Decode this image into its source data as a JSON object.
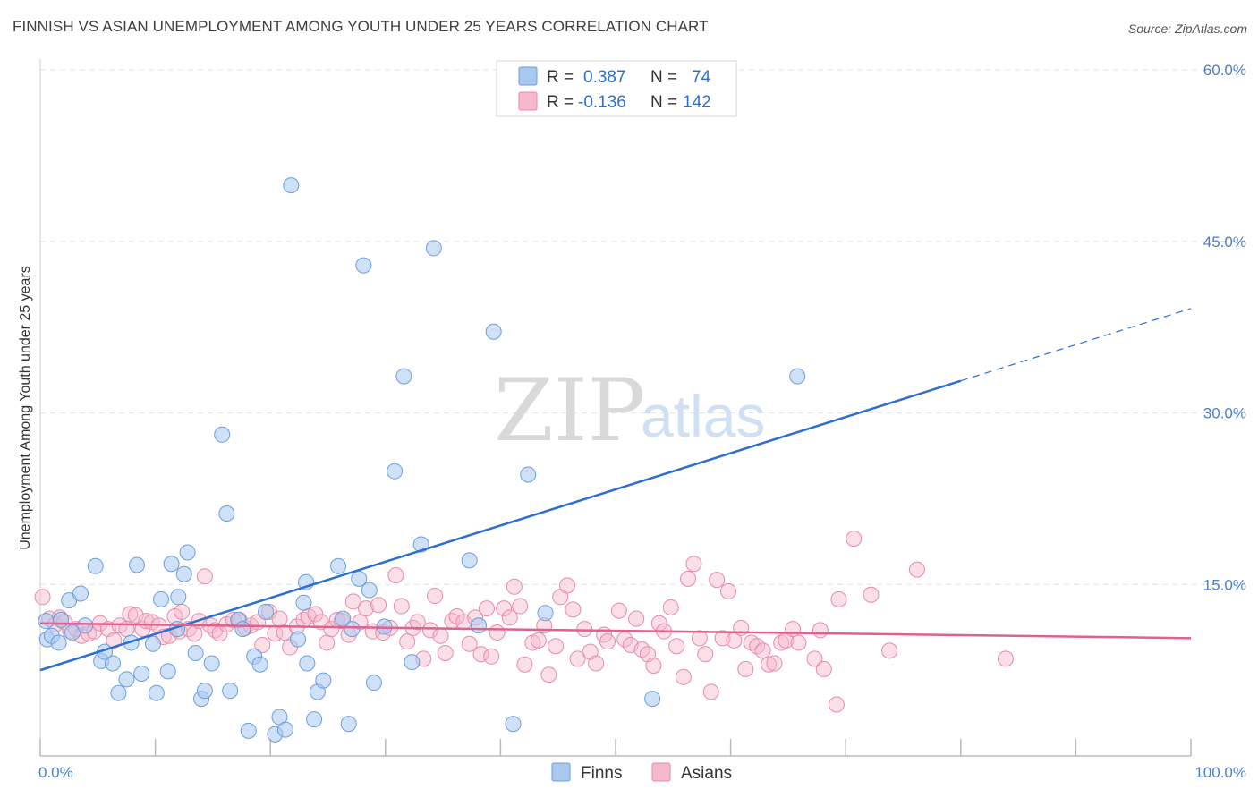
{
  "title": "FINNISH VS ASIAN UNEMPLOYMENT AMONG YOUTH UNDER 25 YEARS CORRELATION CHART",
  "source": "Source: ZipAtlas.com",
  "watermark": {
    "zip": "ZIP",
    "atlas": "atlas"
  },
  "colors": {
    "finns_fill": "#a8c8f0",
    "finns_stroke": "#6a9fdc",
    "finns_line": "#2c6fd1",
    "asians_fill": "#f6b8cb",
    "asians_stroke": "#e88aa8",
    "asians_line": "#e0608e",
    "axis_text": "#4a7fd0",
    "grid": "#e3e3e3"
  },
  "legend_top": {
    "rows": [
      {
        "r_label": "R =",
        "r_value": "0.387",
        "n_label": "N =",
        "n_value": "74"
      },
      {
        "r_label": "R =",
        "r_value": "-0.136",
        "n_label": "N =",
        "n_value": "142"
      }
    ]
  },
  "legend_bottom": {
    "finns": "Finns",
    "asians": "Asians"
  },
  "chart_data": {
    "type": "scatter",
    "title": "FINNISH VS ASIAN UNEMPLOYMENT AMONG YOUTH UNDER 25 YEARS CORRELATION CHART",
    "xlabel": "",
    "ylabel": "Unemployment Among Youth under 25 years",
    "xlim": [
      0,
      100
    ],
    "ylim": [
      0,
      60
    ],
    "x_tick_labels": [
      "0.0%",
      "100.0%"
    ],
    "y_ticks": [
      15,
      30,
      45,
      60
    ],
    "y_tick_labels": [
      "15.0%",
      "30.0%",
      "45.0%",
      "60.0%"
    ],
    "grid": true,
    "legend_position": "top-center",
    "series": [
      {
        "name": "Finns",
        "stats": {
          "R": 0.387,
          "N": 74
        },
        "trend": {
          "x0": 0,
          "y0": 7.5,
          "x1": 80,
          "y1": 32.8,
          "dashed_to_x": 100
        },
        "points": [
          [
            0.5,
            11.8
          ],
          [
            0.6,
            10.2
          ],
          [
            1.0,
            10.5
          ],
          [
            1.6,
            9.9
          ],
          [
            1.8,
            11.9
          ],
          [
            2.5,
            13.6
          ],
          [
            2.8,
            10.8
          ],
          [
            3.5,
            14.2
          ],
          [
            3.9,
            11.4
          ],
          [
            4.8,
            16.6
          ],
          [
            5.3,
            8.3
          ],
          [
            6.3,
            8.1
          ],
          [
            5.6,
            9.1
          ],
          [
            6.8,
            5.5
          ],
          [
            7.5,
            6.7
          ],
          [
            7.9,
            9.9
          ],
          [
            8.4,
            16.7
          ],
          [
            8.8,
            7.2
          ],
          [
            9.8,
            9.8
          ],
          [
            10.1,
            5.5
          ],
          [
            10.5,
            13.7
          ],
          [
            11.1,
            7.4
          ],
          [
            11.4,
            16.8
          ],
          [
            11.9,
            11.1
          ],
          [
            12.0,
            13.9
          ],
          [
            12.5,
            15.9
          ],
          [
            12.8,
            17.8
          ],
          [
            13.5,
            9.0
          ],
          [
            14.0,
            5.0
          ],
          [
            14.3,
            5.7
          ],
          [
            14.9,
            8.1
          ],
          [
            15.8,
            28.1
          ],
          [
            16.2,
            21.2
          ],
          [
            16.5,
            5.7
          ],
          [
            17.2,
            11.9
          ],
          [
            17.6,
            11.1
          ],
          [
            18.1,
            2.2
          ],
          [
            18.6,
            8.7
          ],
          [
            19.1,
            8.0
          ],
          [
            19.6,
            12.6
          ],
          [
            20.4,
            1.9
          ],
          [
            20.8,
            3.4
          ],
          [
            21.3,
            2.3
          ],
          [
            21.8,
            49.9
          ],
          [
            22.4,
            10.2
          ],
          [
            22.9,
            13.4
          ],
          [
            23.1,
            15.2
          ],
          [
            23.2,
            8.1
          ],
          [
            23.8,
            3.2
          ],
          [
            24.1,
            5.6
          ],
          [
            24.6,
            6.6
          ],
          [
            25.9,
            16.6
          ],
          [
            26.3,
            12.0
          ],
          [
            26.8,
            2.8
          ],
          [
            27.1,
            11.1
          ],
          [
            27.7,
            15.5
          ],
          [
            28.1,
            42.9
          ],
          [
            28.6,
            14.5
          ],
          [
            29.0,
            6.4
          ],
          [
            29.9,
            11.3
          ],
          [
            30.8,
            24.9
          ],
          [
            31.6,
            33.2
          ],
          [
            32.3,
            8.2
          ],
          [
            33.1,
            18.5
          ],
          [
            34.2,
            44.4
          ],
          [
            37.3,
            17.1
          ],
          [
            38.1,
            11.4
          ],
          [
            39.4,
            37.1
          ],
          [
            41.1,
            2.8
          ],
          [
            42.4,
            24.6
          ],
          [
            43.9,
            12.5
          ],
          [
            49.3,
            56.6
          ],
          [
            53.2,
            5.0
          ],
          [
            65.8,
            33.2
          ]
        ]
      },
      {
        "name": "Asians",
        "stats": {
          "R": -0.136,
          "N": 142
        },
        "trend": {
          "x0": 0,
          "y0": 11.6,
          "x1": 100,
          "y1": 10.3
        },
        "points": [
          [
            0.2,
            13.9
          ],
          [
            0.8,
            12.0
          ],
          [
            1.3,
            11.5
          ],
          [
            1.7,
            12.1
          ],
          [
            2.1,
            11.7
          ],
          [
            2.6,
            10.9
          ],
          [
            3.1,
            11.1
          ],
          [
            3.6,
            10.5
          ],
          [
            4.2,
            10.7
          ],
          [
            4.7,
            10.9
          ],
          [
            5.2,
            11.6
          ],
          [
            5.9,
            11.1
          ],
          [
            6.4,
            10.1
          ],
          [
            6.9,
            11.4
          ],
          [
            7.5,
            11.1
          ],
          [
            7.8,
            12.4
          ],
          [
            8.3,
            12.3
          ],
          [
            8.9,
            11.1
          ],
          [
            9.2,
            11.8
          ],
          [
            9.7,
            11.7
          ],
          [
            10.3,
            11.4
          ],
          [
            10.7,
            10.4
          ],
          [
            11.2,
            10.5
          ],
          [
            11.7,
            12.2
          ],
          [
            12.1,
            10.9
          ],
          [
            12.3,
            12.6
          ],
          [
            12.9,
            11.1
          ],
          [
            13.4,
            10.7
          ],
          [
            13.8,
            11.8
          ],
          [
            14.3,
            15.7
          ],
          [
            14.8,
            11.4
          ],
          [
            15.2,
            11.0
          ],
          [
            15.6,
            10.7
          ],
          [
            16.2,
            11.5
          ],
          [
            16.8,
            11.9
          ],
          [
            17.3,
            11.9
          ],
          [
            17.8,
            11.2
          ],
          [
            18.3,
            11.4
          ],
          [
            18.9,
            11.7
          ],
          [
            19.3,
            9.7
          ],
          [
            19.9,
            12.6
          ],
          [
            20.4,
            10.7
          ],
          [
            20.8,
            12.0
          ],
          [
            21.2,
            10.8
          ],
          [
            21.7,
            9.5
          ],
          [
            22.3,
            11.3
          ],
          [
            22.9,
            11.9
          ],
          [
            23.3,
            12.2
          ],
          [
            23.9,
            12.4
          ],
          [
            24.4,
            11.7
          ],
          [
            24.9,
            9.9
          ],
          [
            25.3,
            11.1
          ],
          [
            25.8,
            11.9
          ],
          [
            26.2,
            11.8
          ],
          [
            26.8,
            10.6
          ],
          [
            27.2,
            13.5
          ],
          [
            27.8,
            11.7
          ],
          [
            28.3,
            12.9
          ],
          [
            28.9,
            10.9
          ],
          [
            29.4,
            13.2
          ],
          [
            29.8,
            10.8
          ],
          [
            30.4,
            11.2
          ],
          [
            30.9,
            15.8
          ],
          [
            31.4,
            13.1
          ],
          [
            31.9,
            10.0
          ],
          [
            32.4,
            11.2
          ],
          [
            32.8,
            11.7
          ],
          [
            33.3,
            8.5
          ],
          [
            33.9,
            11.0
          ],
          [
            34.3,
            14.0
          ],
          [
            34.8,
            10.5
          ],
          [
            35.2,
            9.0
          ],
          [
            35.8,
            11.8
          ],
          [
            36.2,
            12.2
          ],
          [
            36.8,
            11.7
          ],
          [
            37.3,
            9.8
          ],
          [
            37.8,
            12.1
          ],
          [
            38.3,
            8.9
          ],
          [
            38.8,
            12.9
          ],
          [
            39.2,
            8.7
          ],
          [
            39.7,
            10.8
          ],
          [
            40.3,
            12.9
          ],
          [
            40.8,
            12.1
          ],
          [
            41.2,
            14.8
          ],
          [
            41.7,
            13.1
          ],
          [
            42.1,
            8.0
          ],
          [
            42.8,
            9.9
          ],
          [
            43.3,
            10.1
          ],
          [
            43.8,
            11.4
          ],
          [
            44.2,
            7.1
          ],
          [
            44.8,
            9.6
          ],
          [
            45.2,
            13.9
          ],
          [
            45.8,
            14.9
          ],
          [
            46.3,
            12.8
          ],
          [
            46.7,
            8.5
          ],
          [
            47.3,
            11.1
          ],
          [
            47.8,
            9.1
          ],
          [
            48.3,
            8.1
          ],
          [
            49.0,
            10.6
          ],
          [
            49.3,
            10.0
          ],
          [
            50.3,
            12.7
          ],
          [
            50.8,
            10.2
          ],
          [
            51.3,
            9.7
          ],
          [
            51.8,
            12.0
          ],
          [
            52.3,
            9.3
          ],
          [
            52.8,
            8.9
          ],
          [
            53.3,
            7.9
          ],
          [
            53.8,
            11.6
          ],
          [
            54.2,
            10.9
          ],
          [
            54.8,
            13.0
          ],
          [
            55.3,
            9.6
          ],
          [
            55.9,
            6.9
          ],
          [
            56.3,
            15.5
          ],
          [
            56.8,
            16.8
          ],
          [
            57.3,
            10.3
          ],
          [
            57.8,
            8.9
          ],
          [
            58.3,
            5.6
          ],
          [
            58.8,
            15.4
          ],
          [
            59.3,
            10.3
          ],
          [
            59.8,
            14.4
          ],
          [
            60.3,
            10.1
          ],
          [
            60.9,
            11.2
          ],
          [
            61.3,
            7.6
          ],
          [
            61.8,
            9.9
          ],
          [
            62.3,
            9.6
          ],
          [
            62.8,
            9.2
          ],
          [
            63.3,
            8.0
          ],
          [
            63.8,
            8.1
          ],
          [
            64.4,
            9.9
          ],
          [
            64.8,
            10.1
          ],
          [
            65.4,
            11.1
          ],
          [
            65.9,
            9.9
          ],
          [
            67.3,
            8.5
          ],
          [
            67.8,
            11.0
          ],
          [
            68.1,
            7.6
          ],
          [
            69.4,
            13.7
          ],
          [
            70.7,
            19.0
          ],
          [
            72.2,
            14.1
          ],
          [
            73.8,
            9.2
          ],
          [
            76.2,
            16.3
          ],
          [
            83.9,
            8.5
          ],
          [
            69.2,
            4.5
          ]
        ]
      }
    ]
  }
}
